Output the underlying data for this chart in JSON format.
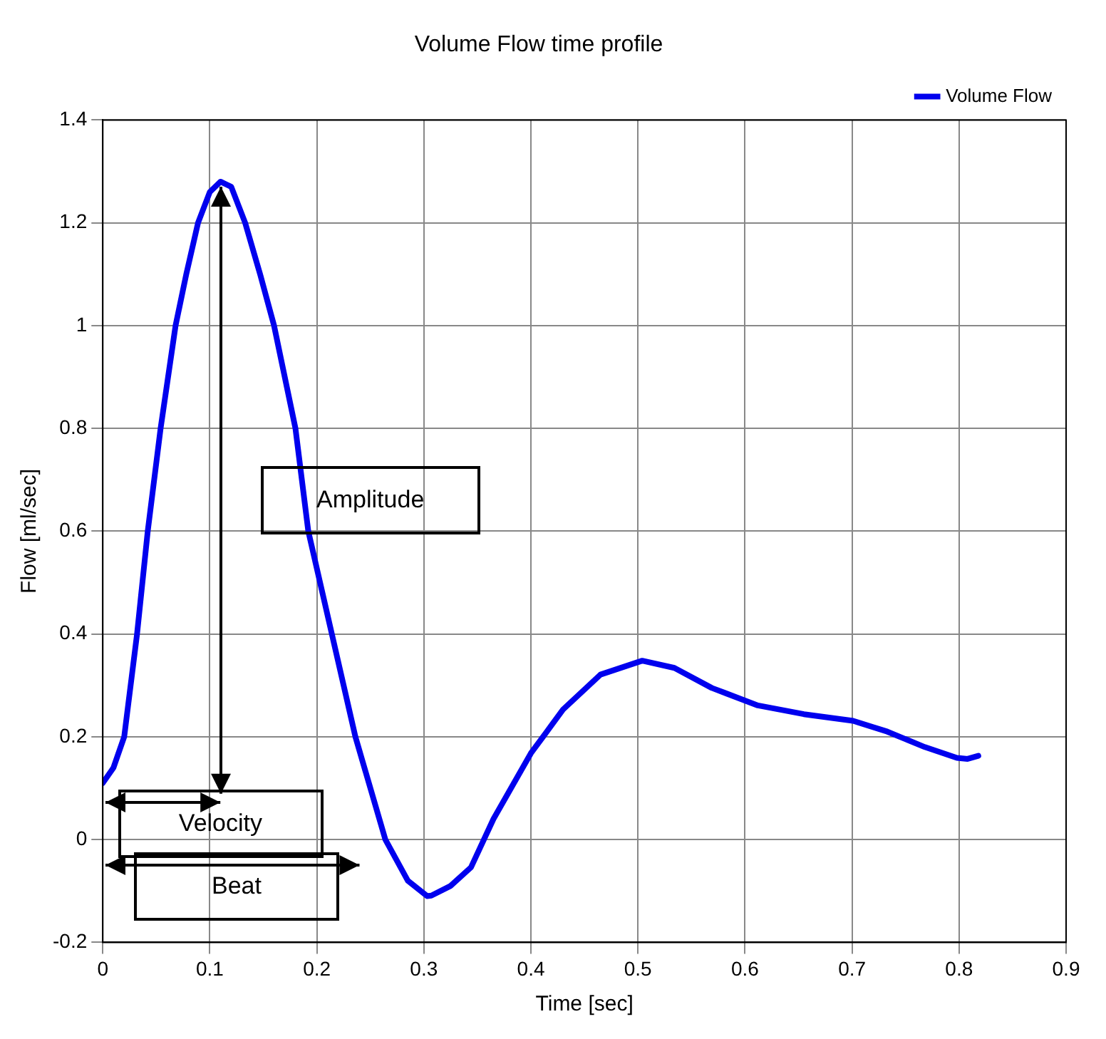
{
  "chart_data": {
    "type": "line",
    "title": "Volume Flow time profile",
    "xlabel": "Time [sec]",
    "ylabel": "Flow [ml/sec]",
    "series": [
      {
        "name": "Volume Flow",
        "color": "#0000ee",
        "x": [
          0,
          0.01,
          0.02,
          0.032,
          0.042,
          0.054,
          0.068,
          0.078,
          0.089,
          0.1,
          0.11,
          0.12,
          0.133,
          0.147,
          0.16,
          0.18,
          0.192,
          0.214,
          0.236,
          0.264,
          0.285,
          0.303,
          0.307,
          0.325,
          0.344,
          0.365,
          0.4,
          0.43,
          0.465,
          0.504,
          0.534,
          0.569,
          0.612,
          0.655,
          0.701,
          0.733,
          0.768,
          0.798,
          0.808,
          0.818
        ],
        "values": [
          0.11,
          0.14,
          0.2,
          0.4,
          0.6,
          0.8,
          1.0,
          1.1,
          1.2,
          1.26,
          1.28,
          1.27,
          1.2,
          1.1,
          1.0,
          0.8,
          0.6,
          0.4,
          0.2,
          0.0,
          -0.08,
          -0.11,
          -0.109,
          -0.09,
          -0.054,
          0.04,
          0.168,
          0.253,
          0.321,
          0.348,
          0.334,
          0.295,
          0.261,
          0.244,
          0.231,
          0.21,
          0.18,
          0.159,
          0.157,
          0.163
        ]
      }
    ],
    "xlim": [
      0,
      0.9
    ],
    "xticks": [
      0,
      0.1,
      0.2,
      0.3,
      0.4,
      0.5,
      0.6,
      0.7,
      0.8,
      0.9
    ],
    "ylim": [
      -0.2,
      1.4
    ],
    "yticks": [
      -0.2,
      0,
      0.2,
      0.4,
      0.6,
      0.8,
      1,
      1.2,
      1.4
    ],
    "grid": true,
    "legend": "top right",
    "marker": "none",
    "line_style": "solid",
    "annotations": [
      "Amplitude",
      "Velocity",
      "Beat"
    ]
  }
}
